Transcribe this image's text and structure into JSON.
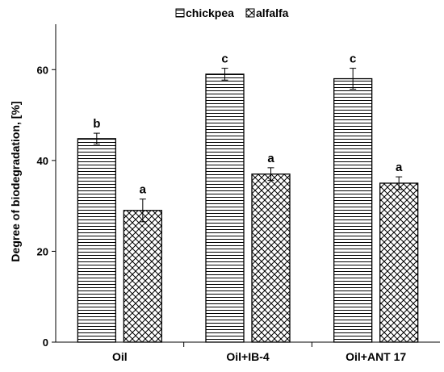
{
  "chart_data": {
    "type": "bar",
    "title": "",
    "xlabel": "",
    "ylabel": "Degree of biodegradation, [%]",
    "ylim": [
      0,
      70
    ],
    "yticks": [
      0,
      20,
      40,
      60
    ],
    "grid": false,
    "legend_position": "top",
    "categories": [
      "Oil",
      "Oil+IB-4",
      "Oil+ANT 17"
    ],
    "series": [
      {
        "name": "chickpea",
        "pattern": "horizontal-lines",
        "values": [
          44.8,
          59.0,
          58.0
        ],
        "errors": [
          1.2,
          1.3,
          2.3
        ],
        "labels": [
          "b",
          "c",
          "c"
        ]
      },
      {
        "name": "alfalfa",
        "pattern": "crosshatch",
        "values": [
          29.0,
          37.0,
          35.0
        ],
        "errors": [
          2.5,
          1.4,
          1.4
        ],
        "labels": [
          "a",
          "a",
          "a"
        ]
      }
    ]
  }
}
